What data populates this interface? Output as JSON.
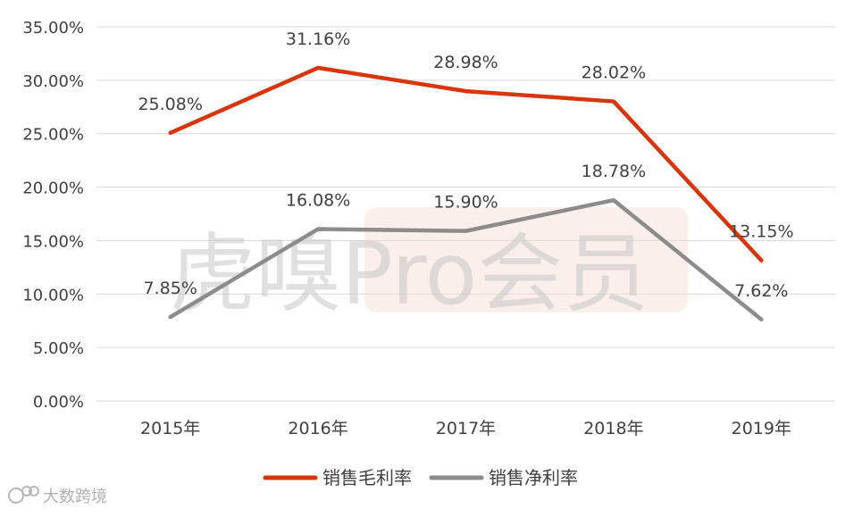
{
  "chart_data": {
    "type": "line",
    "categories": [
      "2015年",
      "2016年",
      "2017年",
      "2018年",
      "2019年"
    ],
    "series": [
      {
        "name": "销售毛利率",
        "values": [
          25.08,
          31.16,
          28.98,
          28.02,
          13.15
        ],
        "labels": [
          "25.08%",
          "31.16%",
          "28.98%",
          "28.02%",
          "13.15%"
        ],
        "color": "#d9350c"
      },
      {
        "name": "销售净利率",
        "values": [
          7.85,
          16.08,
          15.9,
          18.78,
          7.62
        ],
        "labels": [
          "7.85%",
          "16.08%",
          "15.90%",
          "18.78%",
          "7.62%"
        ],
        "color": "#8c8c8c"
      }
    ],
    "y_ticks": [
      "0.00%",
      "5.00%",
      "10.00%",
      "15.00%",
      "20.00%",
      "25.00%",
      "30.00%",
      "35.00%"
    ],
    "ylim": [
      0,
      35
    ],
    "grid": true,
    "legend_position": "bottom"
  },
  "watermarks": {
    "center": "虎嗅Pro会员",
    "corner": "大数跨境"
  }
}
